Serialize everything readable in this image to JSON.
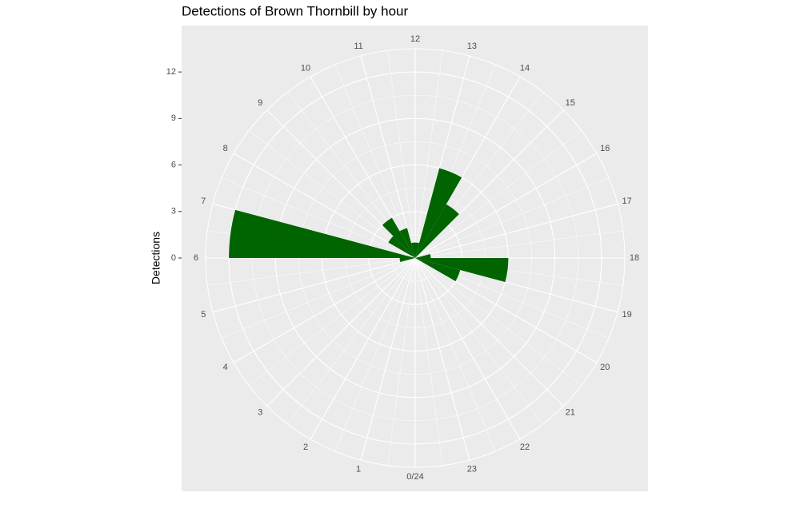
{
  "chart_data": {
    "type": "polar_bar",
    "title": "Detections of Brown Thornbill by hour",
    "ylabel": "Detections",
    "x": [
      0,
      1,
      2,
      3,
      4,
      5,
      6,
      7,
      8,
      9,
      10,
      11,
      12,
      13,
      14,
      15,
      16,
      17,
      18,
      19,
      20,
      21,
      22,
      23
    ],
    "values": [
      0,
      0,
      0,
      0,
      0,
      1,
      12,
      0,
      2,
      3,
      2,
      1,
      1,
      6,
      4,
      0,
      0,
      1,
      6,
      3,
      0,
      0,
      0,
      0
    ],
    "color": "#006400",
    "xlim": [
      0,
      24
    ],
    "xticks": [
      {
        "value": 0,
        "label": "0/24"
      },
      1,
      2,
      3,
      4,
      5,
      6,
      7,
      8,
      9,
      10,
      11,
      12,
      13,
      14,
      15,
      16,
      17,
      18,
      19,
      20,
      21,
      22,
      23
    ],
    "ylim": [
      0,
      13.5
    ],
    "yticks": [
      0,
      3,
      6,
      9,
      12
    ],
    "grid": true
  }
}
